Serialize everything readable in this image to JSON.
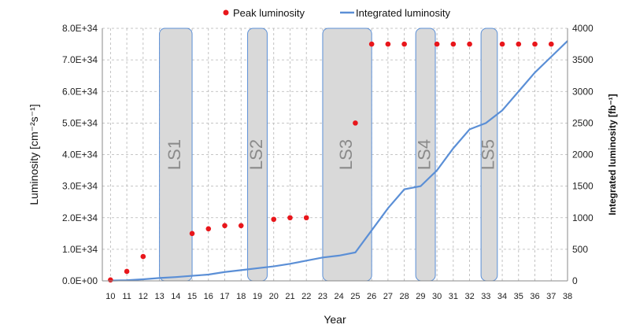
{
  "chart_data": {
    "type": "line",
    "xlabel": "Year",
    "ylabel_left": "Luminosity [cm⁻²s⁻¹]",
    "ylabel_right": "Integrated luminosity [fb⁻¹]",
    "categories": [
      "10",
      "11",
      "12",
      "13",
      "14",
      "15",
      "16",
      "17",
      "18",
      "19",
      "20",
      "21",
      "22",
      "23",
      "24",
      "25",
      "26",
      "27",
      "28",
      "29",
      "30",
      "31",
      "32",
      "33",
      "34",
      "35",
      "36",
      "37",
      "38"
    ],
    "ylim_left": [
      0,
      8e+34
    ],
    "ylim_right": [
      0,
      4000
    ],
    "left_tick_labels": [
      "0.0E+00",
      "1.0E+34",
      "2.0E+34",
      "3.0E+34",
      "4.0E+34",
      "5.0E+34",
      "6.0E+34",
      "7.0E+34",
      "8.0E+34"
    ],
    "right_tick_labels": [
      "0",
      "500",
      "1000",
      "1500",
      "2000",
      "2500",
      "3000",
      "3500",
      "4000"
    ],
    "grid": true,
    "legend": {
      "placement": "top",
      "entries": [
        "Peak luminosity",
        "Integrated luminosity"
      ]
    },
    "series": [
      {
        "name": "Peak luminosity",
        "kind": "scatter",
        "axis": "left",
        "color": "#e8161b",
        "x": [
          10,
          11,
          12,
          15,
          16,
          17,
          18,
          20,
          21,
          22,
          25,
          26,
          27,
          28,
          30,
          31,
          32,
          34,
          35,
          36,
          37
        ],
        "y": [
          3e+32,
          3e+33,
          7.7e+33,
          1.5e+34,
          1.65e+34,
          1.75e+34,
          1.75e+34,
          1.95e+34,
          2e+34,
          2e+34,
          5e+34,
          7.5e+34,
          7.5e+34,
          7.5e+34,
          7.5e+34,
          7.5e+34,
          7.5e+34,
          7.5e+34,
          7.5e+34,
          7.5e+34,
          7.5e+34
        ]
      },
      {
        "name": "Integrated luminosity",
        "kind": "line",
        "axis": "right",
        "color": "#5b8fd6",
        "x": [
          10,
          11,
          12,
          13,
          14,
          15,
          16,
          17,
          18,
          19,
          20,
          21,
          22,
          23,
          24,
          25,
          26,
          27,
          28,
          29,
          30,
          31,
          32,
          33,
          34,
          35,
          36,
          37,
          38
        ],
        "y": [
          5,
          10,
          25,
          45,
          60,
          80,
          100,
          140,
          170,
          200,
          230,
          270,
          320,
          370,
          400,
          450,
          800,
          1150,
          1450,
          1500,
          1750,
          2100,
          2400,
          2500,
          2700,
          3000,
          3300,
          3550,
          3800
        ]
      }
    ],
    "shutdowns": [
      {
        "label": "LS1",
        "start": 13,
        "end": 15
      },
      {
        "label": "LS2",
        "start": 18.4,
        "end": 19.6
      },
      {
        "label": "LS3",
        "start": 23,
        "end": 26
      },
      {
        "label": "LS4",
        "start": 28.7,
        "end": 29.9
      },
      {
        "label": "LS5",
        "start": 32.7,
        "end": 33.7
      }
    ]
  }
}
